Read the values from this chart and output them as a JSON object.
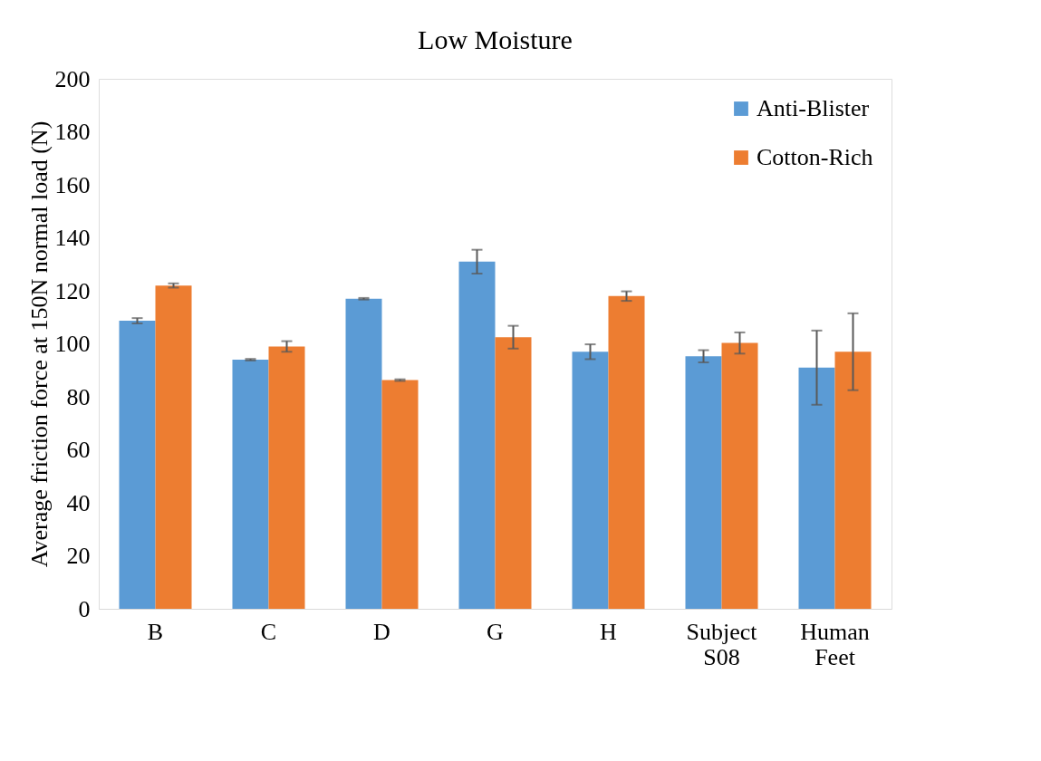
{
  "chart_data": {
    "type": "bar",
    "title": "Low Moisture",
    "ylabel": "Average friction force at 150N normal load (N)",
    "categories": [
      "B",
      "C",
      "D",
      "G",
      "H",
      "Subject S08",
      "Human Feet"
    ],
    "series": [
      {
        "name": "Anti-Blister",
        "color": "#5b9bd5",
        "values": [
          108.7,
          94,
          117,
          131,
          97,
          95.3,
          91
        ],
        "errors": [
          1,
          0.3,
          0.3,
          4.5,
          2.8,
          2.3,
          14
        ]
      },
      {
        "name": "Cotton-Rich",
        "color": "#ed7d31",
        "values": [
          122,
          99,
          86.3,
          102.5,
          118,
          100.3,
          97
        ],
        "errors": [
          0.8,
          2,
          0.3,
          4.3,
          1.8,
          4,
          14.5
        ]
      }
    ],
    "ylim": [
      0,
      200
    ],
    "yticks": [
      0,
      20,
      40,
      60,
      80,
      100,
      120,
      140,
      160,
      180,
      200
    ],
    "grid": false,
    "legend": "top right"
  }
}
